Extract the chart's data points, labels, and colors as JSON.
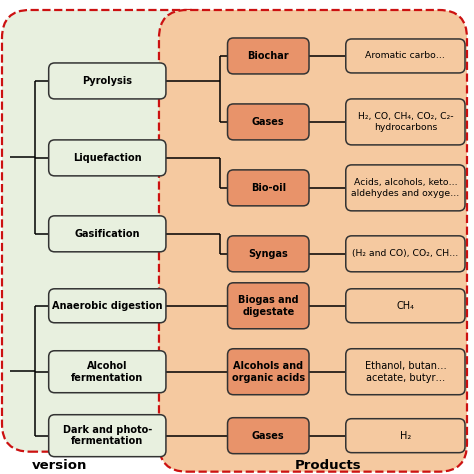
{
  "bg_color": "#ffffff",
  "green_bg": "#e8f0df",
  "orange_bg": "#f5c9a0",
  "green_box_fill": "#e8f0df",
  "green_box_edge": "#333333",
  "orange_box_fill": "#e8936a",
  "orange_box_edge": "#333333",
  "light_orange_fill": "#f5c9a0",
  "light_orange_edge": "#333333",
  "dashed_border_color": "#cc1111",
  "text_color": "#000000",
  "font_size": 7.0,
  "bold_font_size": 7.0,
  "title_font_size": 9.5,
  "left_top_labels": [
    "Pyrolysis",
    "Liquefaction",
    "Gasification"
  ],
  "left_bot_labels": [
    "Anaerobic digestion",
    "Alcohol\nfermentation",
    "Dark and photo-\nfermentation"
  ],
  "mid_top_labels": [
    "Biochar",
    "Gases",
    "Bio-oil",
    "Syngas"
  ],
  "mid_bot_labels": [
    "Biogas and\ndigestate",
    "Alcohols and\norganic acids",
    "Gases"
  ],
  "right_top_labels": [
    "Aromatic carbo…",
    "H₂, CO, CH₄, CO₂, C₂-\nhydrocarbons",
    "Acids, alcohols, keto…\naldehydes and oxyge…",
    "(H₂ and CO), CO₂, CH…"
  ],
  "right_bot_labels": [
    "CH₄",
    "Ethanol, butan…\nacetate, butyr…",
    "H₂"
  ],
  "label_conversion": "version",
  "label_products": "Products"
}
